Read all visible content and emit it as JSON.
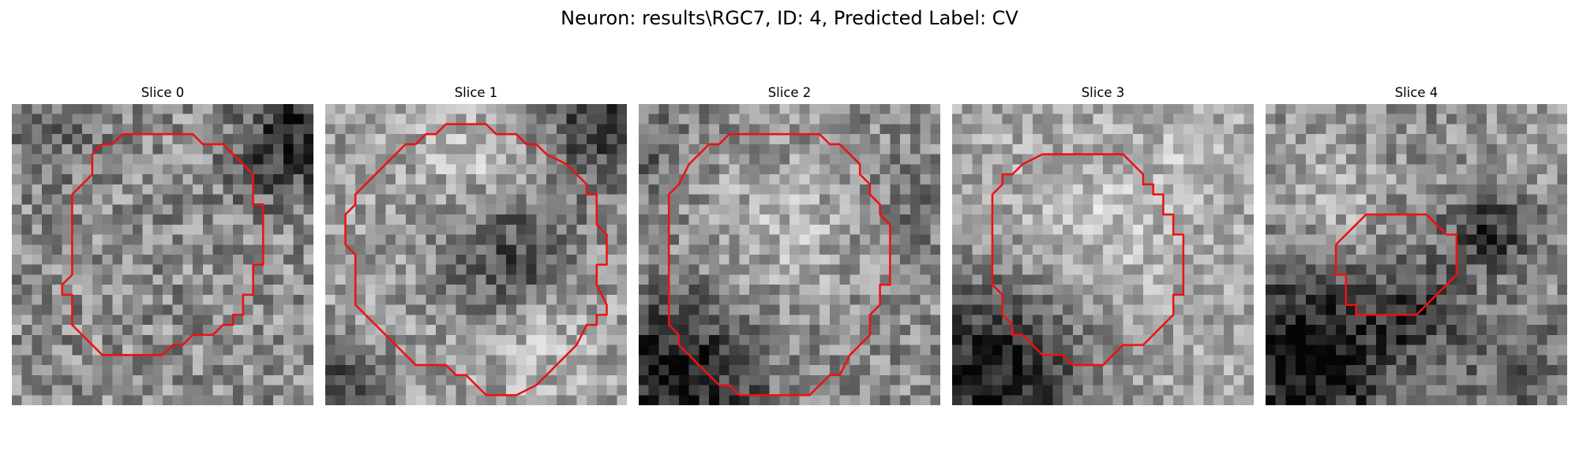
{
  "title": "Neuron: results\\RGC7, ID: 4, Predicted Label: CV",
  "outline_color": "#ee1111",
  "panels": [
    {
      "title": "Slice 0"
    },
    {
      "title": "Slice 1"
    },
    {
      "title": "Slice 2"
    },
    {
      "title": "Slice 3"
    },
    {
      "title": "Slice 4"
    }
  ]
}
